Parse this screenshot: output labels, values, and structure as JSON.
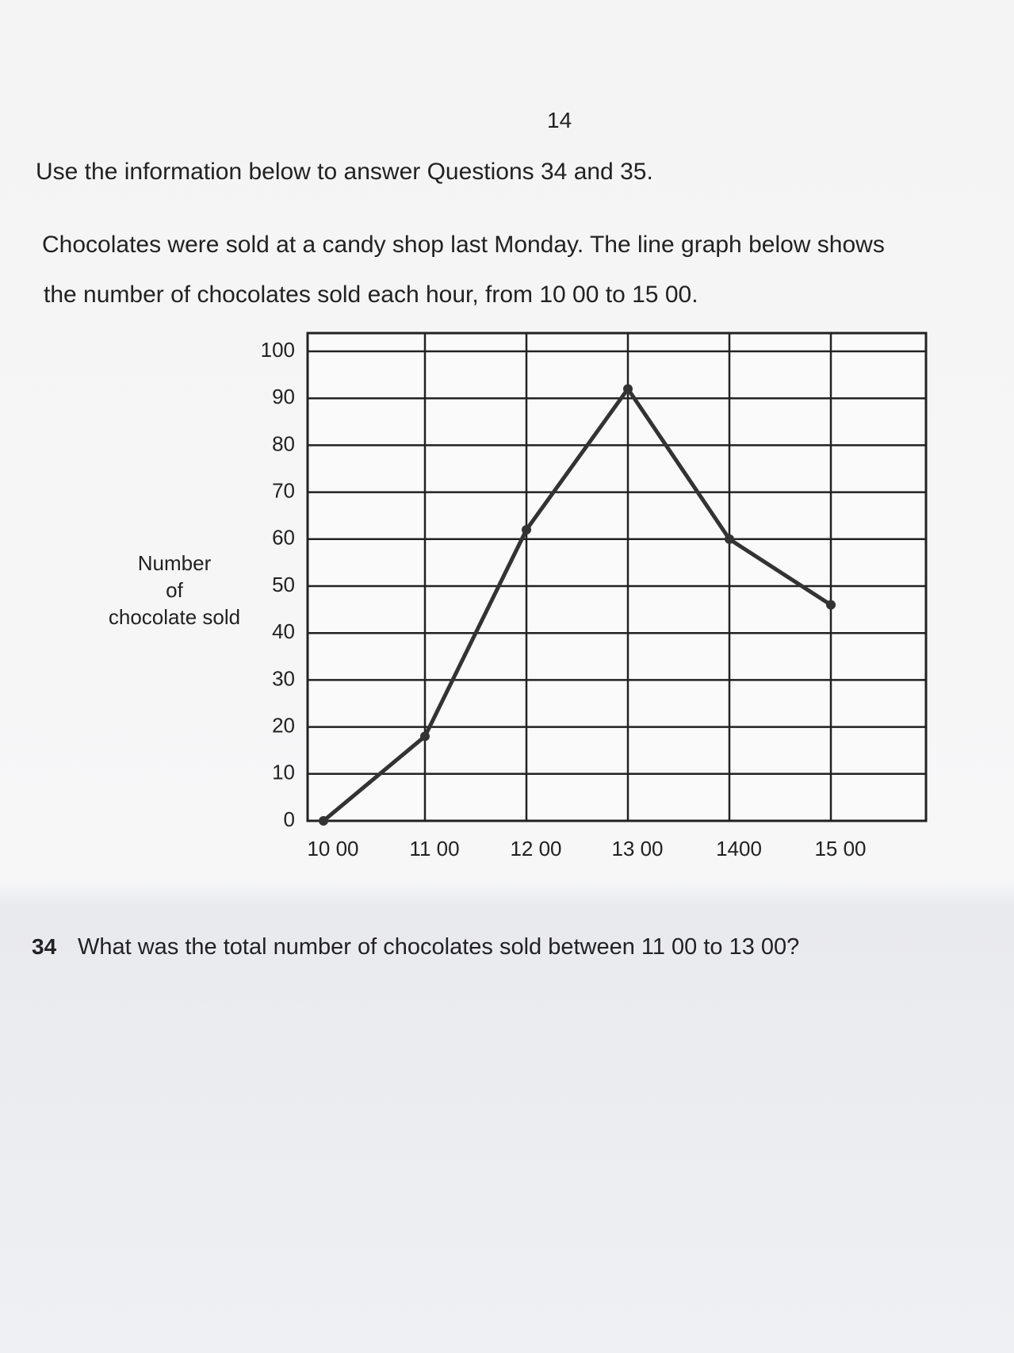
{
  "page_number": "14",
  "intro": "Use the information below to answer Questions 34 and 35.",
  "paragraph": [
    "Chocolates were sold at a candy shop last Monday. The line graph below shows",
    "the number of chocolates sold each hour, from 10 00 to 15 00."
  ],
  "chart_data": {
    "type": "line",
    "y_label": [
      "Number",
      "of",
      "chocolate sold"
    ],
    "categories": [
      "10 00",
      "11 00",
      "12 00",
      "13 00",
      "1400",
      "15 00"
    ],
    "values": [
      0,
      18,
      62,
      92,
      60,
      46
    ],
    "color": "#333333",
    "ylim": [
      0,
      100
    ],
    "yticks": [
      0,
      10,
      20,
      30,
      40,
      50,
      60,
      70,
      80,
      90,
      100
    ],
    "grid": true
  },
  "question": {
    "number": "34",
    "text": "What was the total number of chocolates sold between 11 00 to 13 00?"
  }
}
